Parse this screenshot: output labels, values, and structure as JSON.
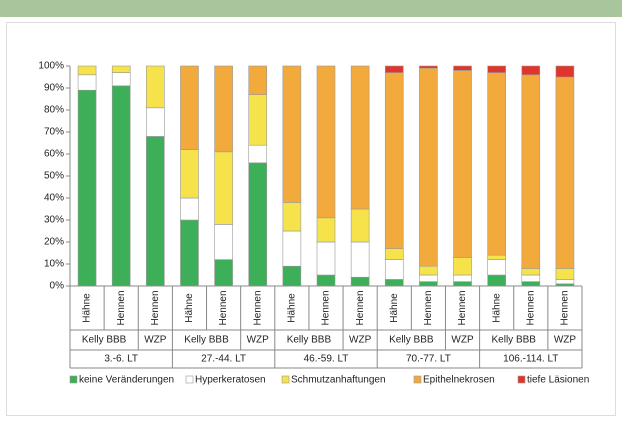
{
  "chart_data": {
    "type": "stacked_bar",
    "categories": [
      "Hähne",
      "Hennen",
      "Hennen",
      "Hähne",
      "Hennen",
      "Hennen",
      "Hähne",
      "Hennen",
      "Hennen",
      "Hähne",
      "Hennen",
      "Hennen",
      "Hähne",
      "Hennen",
      "Hennen"
    ],
    "line_labels": [
      "Kelly BBB",
      "WZP",
      "Kelly BBB",
      "WZP",
      "Kelly BBB",
      "WZP",
      "Kelly BBB",
      "WZP",
      "Kelly BBB",
      "WZP"
    ],
    "period_labels": [
      "3.-6. LT",
      "27.-44. LT",
      "46.-59. LT",
      "70.-77. LT",
      "106.-114. LT"
    ],
    "series": [
      {
        "name": "keine Veränderungen",
        "color": "#3daf58",
        "values": [
          89,
          91,
          68,
          30,
          12,
          56,
          9,
          5,
          4,
          3,
          2,
          2,
          5,
          2,
          1
        ]
      },
      {
        "name": "Hyperkeratosen",
        "color": "#ffffff",
        "values": [
          7,
          6,
          13,
          10,
          16,
          8,
          16,
          15,
          16,
          9,
          3,
          3,
          7,
          3,
          2
        ]
      },
      {
        "name": "Schmutzanhaftungen",
        "color": "#f6e34c",
        "values": [
          4,
          3,
          19,
          22,
          33,
          23,
          13,
          11,
          15,
          5,
          4,
          8,
          2,
          3,
          5
        ]
      },
      {
        "name": "Epithelnekrosen",
        "color": "#f3aa3c",
        "values": [
          0,
          0,
          0,
          38,
          39,
          13,
          62,
          69,
          65,
          80,
          90,
          85,
          83,
          88,
          87
        ]
      },
      {
        "name": "tiefe Läsionen",
        "color": "#e0352b",
        "values": [
          0,
          0,
          0,
          0,
          0,
          0,
          0,
          0,
          0,
          3,
          1,
          2,
          3,
          4,
          5
        ]
      }
    ],
    "ylim": [
      0,
      100
    ],
    "yticks": [
      {
        "value": 0,
        "label": "0%"
      },
      {
        "value": 10,
        "label": "10%"
      },
      {
        "value": 20,
        "label": "20%"
      },
      {
        "value": 30,
        "label": "30%"
      },
      {
        "value": 40,
        "label": "40%"
      },
      {
        "value": 50,
        "label": "50%"
      },
      {
        "value": 60,
        "label": "60%"
      },
      {
        "value": 70,
        "label": "70%"
      },
      {
        "value": 80,
        "label": "80%"
      },
      {
        "value": 90,
        "label": "90%"
      },
      {
        "value": 100,
        "label": "100%"
      }
    ],
    "grid": false
  }
}
